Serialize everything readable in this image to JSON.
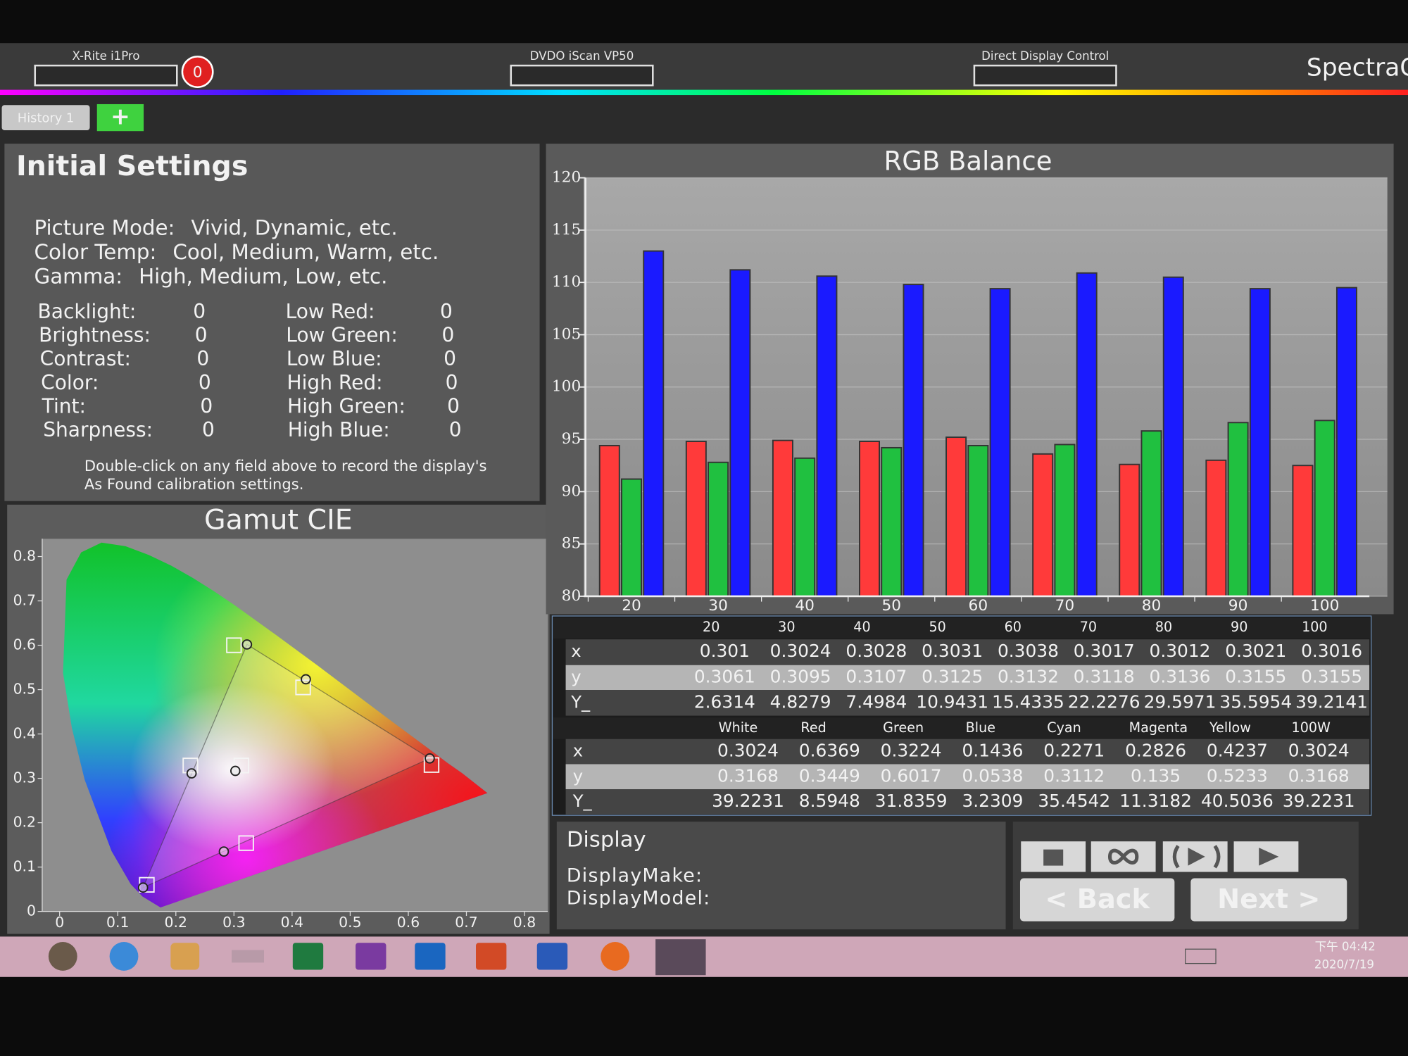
{
  "toolbar": {
    "devices": [
      "X-Rite i1Pro",
      "DVDO iScan VP50",
      "Direct Display Control"
    ],
    "alert_count": 0,
    "brand": "SpectraC"
  },
  "tabs": [
    "History 1",
    "+"
  ],
  "initial_settings": {
    "title": "Initial Settings",
    "modes": [
      [
        "Picture Mode:",
        "Vivid, Dynamic, etc."
      ],
      [
        "Color Temp:",
        "Cool, Medium, Warm, etc."
      ],
      [
        "Gamma:",
        "High, Medium, Low, etc."
      ]
    ],
    "left_controls": [
      [
        "Backlight:",
        0
      ],
      [
        "Brightness:",
        0
      ],
      [
        "Contrast:",
        0
      ],
      [
        "Color:",
        0
      ],
      [
        "Tint:",
        0
      ],
      [
        "Sharpness:",
        0
      ]
    ],
    "right_controls": [
      [
        "Low Red:",
        0
      ],
      [
        "Low Green:",
        0
      ],
      [
        "Low Blue:",
        0
      ],
      [
        "High Red:",
        0
      ],
      [
        "High Green:",
        0
      ],
      [
        "High Blue:",
        0
      ]
    ],
    "note": [
      "Double-click on any field above to record the display's",
      "As Found calibration settings."
    ]
  },
  "chart_data": [
    {
      "type": "bar",
      "title": "RGB Balance",
      "categories": [
        20,
        30,
        40,
        50,
        60,
        70,
        80,
        90,
        100
      ],
      "series": [
        {
          "color": "#ff3a3a",
          "values": [
            94.4,
            94.8,
            94.9,
            94.8,
            95.2,
            93.6,
            92.6,
            93.0,
            92.5
          ]
        },
        {
          "color": "#20c040",
          "values": [
            91.2,
            92.8,
            93.2,
            94.2,
            94.4,
            94.5,
            95.8,
            96.6,
            96.8
          ]
        },
        {
          "color": "#1a1aff",
          "values": [
            113.0,
            111.2,
            110.6,
            109.8,
            109.4,
            110.9,
            110.5,
            109.4,
            109.5
          ]
        }
      ],
      "ylim": [
        80,
        120
      ],
      "yticks": [
        80,
        85,
        90,
        95,
        100,
        105,
        110,
        115,
        120
      ],
      "grid": true
    },
    {
      "type": "scatter",
      "title": "Gamut CIE",
      "xlim": [
        -0.03,
        0.84
      ],
      "ylim": [
        0,
        0.84
      ],
      "xticks": [
        0,
        0.1,
        0.2,
        0.3,
        0.4,
        0.5,
        0.6,
        0.7,
        0.8
      ],
      "yticks": [
        0,
        0.1,
        0.2,
        0.3,
        0.4,
        0.5,
        0.6,
        0.7,
        0.8
      ],
      "targets": {
        "x": [
          0.3127,
          0.64,
          0.3,
          0.15,
          0.225,
          0.321,
          0.419
        ],
        "y": [
          0.329,
          0.33,
          0.6,
          0.06,
          0.329,
          0.154,
          0.505
        ]
      }
    }
  ],
  "grayscale_table": {
    "rows": [
      {
        "label": "x",
        "values": [
          0.301,
          0.3024,
          0.3028,
          0.3031,
          0.3038,
          0.3017,
          0.3012,
          0.3021,
          0.3016
        ]
      },
      {
        "label": "y",
        "values": [
          0.3061,
          0.3095,
          0.3107,
          0.3125,
          0.3132,
          0.3118,
          0.3136,
          0.3155,
          0.3155
        ]
      },
      {
        "label": "Y_",
        "values": [
          2.6314,
          4.8279,
          7.4984,
          10.9431,
          15.4335,
          22.2276,
          29.5971,
          35.5954,
          39.2141
        ]
      }
    ]
  },
  "color_table": {
    "columns": [
      "White",
      "Red",
      "Green",
      "Blue",
      "Cyan",
      "Magenta",
      "Yellow",
      "100W"
    ],
    "rows": [
      {
        "label": "x",
        "values": [
          0.3024,
          0.6369,
          0.3224,
          0.1436,
          0.2271,
          0.2826,
          0.4237,
          0.3024
        ]
      },
      {
        "label": "y",
        "values": [
          0.3168,
          0.3449,
          0.6017,
          0.0538,
          0.3112,
          0.135,
          0.5233,
          0.3168
        ]
      },
      {
        "label": "Y_",
        "values": [
          39.2231,
          8.5948,
          31.8359,
          3.2309,
          35.4542,
          11.3182,
          40.5036,
          39.2231
        ]
      }
    ]
  },
  "display": {
    "title": "Display",
    "fields": [
      "DisplayMake:",
      "DisplayModel:"
    ]
  },
  "buttons": [
    "< Back",
    "Next >"
  ],
  "taskbar": {
    "time": "下午 04:42",
    "date": "2020/7/19"
  }
}
